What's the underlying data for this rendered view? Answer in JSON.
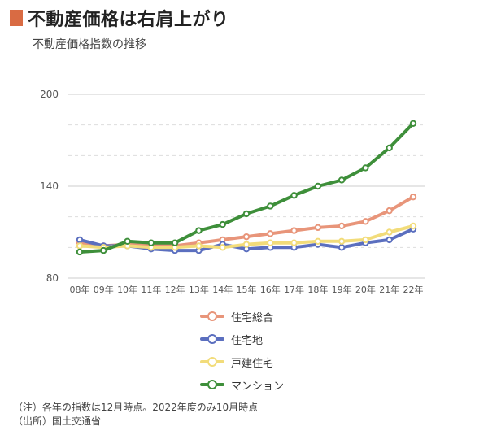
{
  "title": "不動産価格は右肩上がり",
  "subtitle": "不動産価格指数の推移",
  "notes": [
    "（注）各年の指数は12月時点。2022年度のみ10月時点",
    "（出所）国土交通省"
  ],
  "colors": {
    "title_mark": "#d96b43"
  },
  "chart_data": {
    "type": "line",
    "title": "不動産価格指数の推移",
    "categories": [
      "08年",
      "09年",
      "10年",
      "11年",
      "12年",
      "13年",
      "14年",
      "15年",
      "16年",
      "17年",
      "18年",
      "19年",
      "20年",
      "21年",
      "22年"
    ],
    "ylim": [
      80,
      200
    ],
    "yticks": [
      80,
      140,
      200
    ],
    "grid": true,
    "legend_position": "bottom",
    "series": [
      {
        "name": "住宅総合",
        "color": "#e8957a",
        "values": [
          103,
          101,
          102,
          101,
          101,
          103,
          105,
          107,
          109,
          111,
          113,
          114,
          117,
          124,
          133
        ]
      },
      {
        "name": "住宅地",
        "color": "#5b6fbf",
        "values": [
          105,
          101,
          101,
          99,
          98,
          98,
          102,
          99,
          100,
          100,
          102,
          100,
          103,
          105,
          112
        ]
      },
      {
        "name": "戸建住宅",
        "color": "#f2dc7a",
        "values": [
          101,
          100,
          101,
          100,
          100,
          101,
          100,
          102,
          103,
          103,
          104,
          104,
          105,
          110,
          114
        ]
      },
      {
        "name": "マンション",
        "color": "#3e8f3a",
        "values": [
          97,
          98,
          104,
          103,
          103,
          111,
          115,
          122,
          127,
          134,
          140,
          144,
          152,
          165,
          181
        ]
      }
    ]
  }
}
